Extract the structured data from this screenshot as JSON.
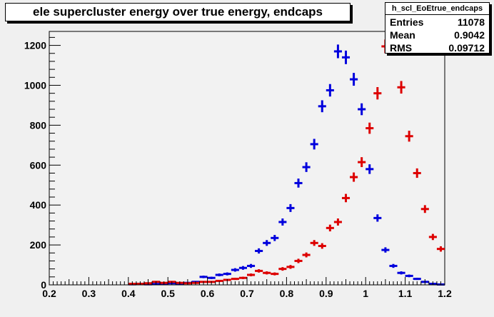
{
  "canvas": {
    "background": "#f0f0f0",
    "frame_background": "#f2f2f2"
  },
  "title": "ele supercluster energy over true energy, endcaps",
  "stats": {
    "name": "h_scl_EoEtrue_endcaps",
    "rows": [
      {
        "key": "Entries",
        "value": "11078"
      },
      {
        "key": "Mean",
        "value": "0.9042"
      },
      {
        "key": "RMS",
        "value": "0.09712"
      }
    ]
  },
  "chart_data": {
    "type": "scatter",
    "title": "ele supercluster energy over true energy, endcaps",
    "xlabel": "",
    "ylabel": "",
    "xlim": [
      0.2,
      1.2
    ],
    "ylim": [
      0,
      1270
    ],
    "x_ticks": [
      "0.2",
      "0.3",
      "0.4",
      "0.5",
      "0.6",
      "0.7",
      "0.8",
      "0.9",
      "1",
      "1.1",
      "1.2"
    ],
    "y_ticks": [
      "0",
      "200",
      "400",
      "600",
      "800",
      "1000",
      "1200"
    ],
    "bin_width": 0.02,
    "grid": false,
    "series": [
      {
        "color": "#0000dd",
        "x": [
          0.41,
          0.43,
          0.45,
          0.47,
          0.49,
          0.51,
          0.53,
          0.55,
          0.57,
          0.59,
          0.61,
          0.63,
          0.65,
          0.67,
          0.69,
          0.71,
          0.73,
          0.75,
          0.77,
          0.79,
          0.81,
          0.83,
          0.85,
          0.87,
          0.89,
          0.91,
          0.93,
          0.95,
          0.97,
          0.99,
          1.01,
          1.03,
          1.05,
          1.07,
          1.09,
          1.11,
          1.13,
          1.15,
          1.17,
          1.19
        ],
        "y": [
          3,
          5,
          3,
          4,
          6,
          8,
          6,
          10,
          15,
          40,
          35,
          50,
          55,
          75,
          85,
          95,
          170,
          210,
          235,
          315,
          385,
          510,
          590,
          705,
          895,
          975,
          1170,
          1140,
          1030,
          880,
          580,
          335,
          175,
          95,
          60,
          45,
          30,
          15,
          5,
          2
        ]
      },
      {
        "color": "#dd0000",
        "x": [
          0.41,
          0.43,
          0.45,
          0.47,
          0.49,
          0.51,
          0.53,
          0.55,
          0.57,
          0.59,
          0.61,
          0.63,
          0.65,
          0.67,
          0.69,
          0.71,
          0.73,
          0.75,
          0.77,
          0.79,
          0.81,
          0.83,
          0.85,
          0.87,
          0.89,
          0.91,
          0.93,
          0.95,
          0.97,
          0.99,
          1.01,
          1.03,
          1.05,
          1.07,
          1.09,
          1.11,
          1.13,
          1.15,
          1.17,
          1.19
        ],
        "y": [
          5,
          5,
          8,
          15,
          10,
          15,
          10,
          8,
          10,
          15,
          15,
          20,
          25,
          30,
          35,
          50,
          70,
          60,
          55,
          80,
          90,
          120,
          150,
          210,
          195,
          285,
          315,
          435,
          540,
          615,
          785,
          960,
          1195,
          1195,
          990,
          745,
          560,
          380,
          240,
          180
        ]
      }
    ]
  }
}
